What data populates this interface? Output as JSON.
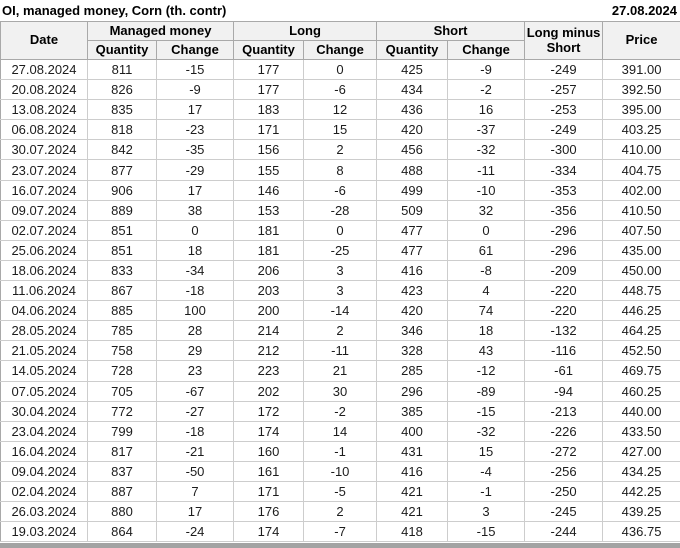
{
  "title": "OI, managed money, Corn (th. contr)",
  "as_of_date": "27.08.2024",
  "colors": {
    "positive_change": "#009b00",
    "negative_change": "#d40000",
    "neutral_text": "#1c1c1c",
    "header_bg": "#f1f1f1",
    "outer_border": "#a9a9a9",
    "inner_border": "#cdcdcd",
    "bottom_strip": "#a3a3a3"
  },
  "chart_data": {
    "type": "table",
    "title": "OI, managed money, Corn (th. contr)",
    "as_of_date": "27.08.2024",
    "column_groups": [
      {
        "label": "Date"
      },
      {
        "label": "Managed money"
      },
      {
        "label": "Long"
      },
      {
        "label": "Short"
      },
      {
        "label": "Long minus Short"
      },
      {
        "label": "Price"
      }
    ],
    "sub_headers": [
      "Quantity",
      "Change",
      "Quantity",
      "Change",
      "Quantity",
      "Change"
    ],
    "row_keys": [
      "date",
      "mm_quantity",
      "mm_change",
      "long_quantity",
      "long_change",
      "short_quantity",
      "short_change",
      "long_minus_short",
      "price"
    ],
    "change_indices": [
      2,
      4,
      6
    ],
    "rows": [
      [
        "27.08.2024",
        811,
        -15,
        177,
        0,
        425,
        -9,
        -249,
        "391.00"
      ],
      [
        "20.08.2024",
        826,
        -9,
        177,
        -6,
        434,
        -2,
        -257,
        "392.50"
      ],
      [
        "13.08.2024",
        835,
        17,
        183,
        12,
        436,
        16,
        -253,
        "395.00"
      ],
      [
        "06.08.2024",
        818,
        -23,
        171,
        15,
        420,
        -37,
        -249,
        "403.25"
      ],
      [
        "30.07.2024",
        842,
        -35,
        156,
        2,
        456,
        -32,
        -300,
        "410.00"
      ],
      [
        "23.07.2024",
        877,
        -29,
        155,
        8,
        488,
        -11,
        -334,
        "404.75"
      ],
      [
        "16.07.2024",
        906,
        17,
        146,
        -6,
        499,
        -10,
        -353,
        "402.00"
      ],
      [
        "09.07.2024",
        889,
        38,
        153,
        -28,
        509,
        32,
        -356,
        "410.50"
      ],
      [
        "02.07.2024",
        851,
        0,
        181,
        0,
        477,
        0,
        -296,
        "407.50"
      ],
      [
        "25.06.2024",
        851,
        18,
        181,
        -25,
        477,
        61,
        -296,
        "435.00"
      ],
      [
        "18.06.2024",
        833,
        -34,
        206,
        3,
        416,
        -8,
        -209,
        "450.00"
      ],
      [
        "11.06.2024",
        867,
        -18,
        203,
        3,
        423,
        4,
        -220,
        "448.75"
      ],
      [
        "04.06.2024",
        885,
        100,
        200,
        -14,
        420,
        74,
        -220,
        "446.25"
      ],
      [
        "28.05.2024",
        785,
        28,
        214,
        2,
        346,
        18,
        -132,
        "464.25"
      ],
      [
        "21.05.2024",
        758,
        29,
        212,
        -11,
        328,
        43,
        -116,
        "452.50"
      ],
      [
        "14.05.2024",
        728,
        23,
        223,
        21,
        285,
        -12,
        -61,
        "469.75"
      ],
      [
        "07.05.2024",
        705,
        -67,
        202,
        30,
        296,
        -89,
        -94,
        "460.25"
      ],
      [
        "30.04.2024",
        772,
        -27,
        172,
        -2,
        385,
        -15,
        -213,
        "440.00"
      ],
      [
        "23.04.2024",
        799,
        -18,
        174,
        14,
        400,
        -32,
        -226,
        "433.50"
      ],
      [
        "16.04.2024",
        817,
        -21,
        160,
        -1,
        431,
        15,
        -272,
        "427.00"
      ],
      [
        "09.04.2024",
        837,
        -50,
        161,
        -10,
        416,
        -4,
        -256,
        "434.25"
      ],
      [
        "02.04.2024",
        887,
        7,
        171,
        -5,
        421,
        -1,
        -250,
        "442.25"
      ],
      [
        "26.03.2024",
        880,
        17,
        176,
        2,
        421,
        3,
        -245,
        "439.25"
      ],
      [
        "19.03.2024",
        864,
        -24,
        174,
        -7,
        418,
        -15,
        -244,
        "436.75"
      ]
    ]
  }
}
